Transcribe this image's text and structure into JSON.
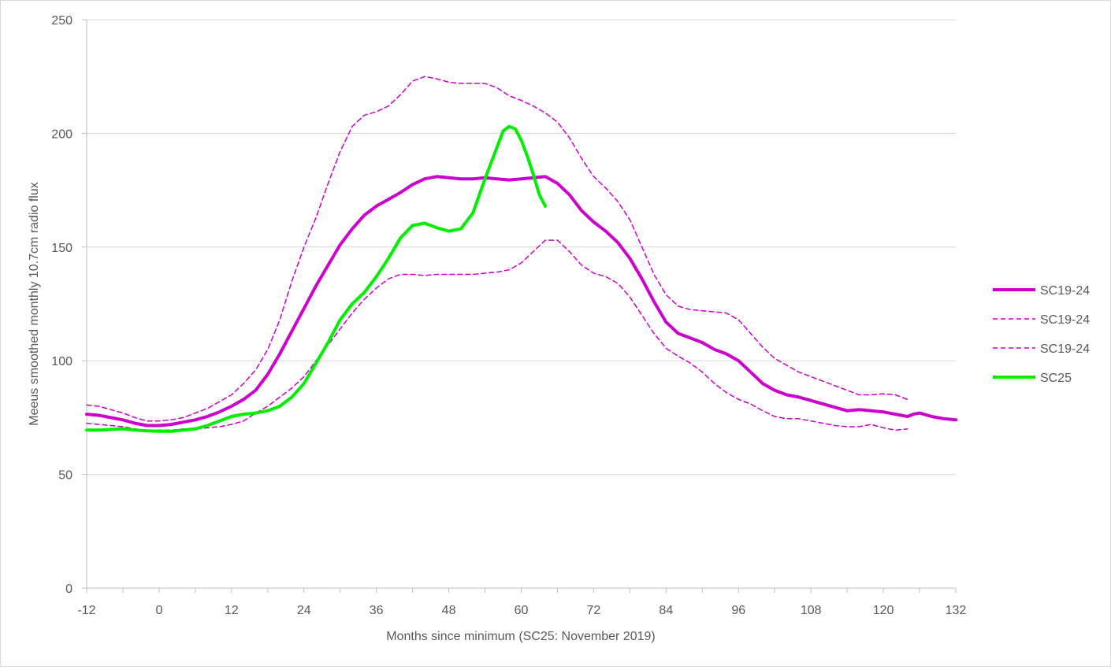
{
  "chart_data": {
    "type": "line",
    "title": "",
    "xlabel": "Months since minimum (SC25: November 2019)",
    "ylabel": "Meeus smoothed monthly 10.7cm radio flux",
    "xlim": [
      -12,
      132
    ],
    "ylim": [
      0,
      250
    ],
    "x_ticks": [
      -12,
      0,
      12,
      24,
      36,
      48,
      60,
      72,
      84,
      96,
      108,
      120,
      132
    ],
    "y_ticks": [
      0,
      50,
      100,
      150,
      200,
      250
    ],
    "grid": "horizontal",
    "legend_position": "right",
    "series": [
      {
        "name": "SC19-24",
        "color": "#cc00cc",
        "style": "solid-thick",
        "points": [
          [
            -12,
            76.5
          ],
          [
            -10,
            76
          ],
          [
            -8,
            75
          ],
          [
            -6,
            74
          ],
          [
            -4,
            72.5
          ],
          [
            -2,
            71.5
          ],
          [
            0,
            71.5
          ],
          [
            2,
            72
          ],
          [
            4,
            73
          ],
          [
            6,
            74
          ],
          [
            8,
            75.5
          ],
          [
            10,
            77.5
          ],
          [
            12,
            80
          ],
          [
            14,
            83
          ],
          [
            16,
            87
          ],
          [
            18,
            94
          ],
          [
            20,
            103
          ],
          [
            22,
            113
          ],
          [
            24,
            123
          ],
          [
            26,
            133
          ],
          [
            28,
            142
          ],
          [
            30,
            151
          ],
          [
            32,
            158
          ],
          [
            34,
            164
          ],
          [
            36,
            168
          ],
          [
            38,
            171
          ],
          [
            40,
            174
          ],
          [
            42,
            177.5
          ],
          [
            44,
            180
          ],
          [
            46,
            181
          ],
          [
            48,
            180.5
          ],
          [
            50,
            180
          ],
          [
            52,
            180
          ],
          [
            54,
            180.5
          ],
          [
            56,
            180
          ],
          [
            58,
            179.5
          ],
          [
            60,
            180
          ],
          [
            62,
            180.5
          ],
          [
            64,
            181
          ],
          [
            66,
            178
          ],
          [
            68,
            173
          ],
          [
            70,
            166
          ],
          [
            72,
            161
          ],
          [
            74,
            157
          ],
          [
            76,
            152
          ],
          [
            78,
            145
          ],
          [
            80,
            136
          ],
          [
            82,
            126
          ],
          [
            84,
            117
          ],
          [
            86,
            112
          ],
          [
            88,
            110
          ],
          [
            90,
            108
          ],
          [
            92,
            105
          ],
          [
            94,
            103
          ],
          [
            96,
            100
          ],
          [
            98,
            95
          ],
          [
            100,
            90
          ],
          [
            102,
            87
          ],
          [
            104,
            85
          ],
          [
            106,
            84
          ],
          [
            108,
            82.5
          ],
          [
            110,
            81
          ],
          [
            112,
            79.5
          ],
          [
            114,
            78
          ],
          [
            116,
            78.5
          ],
          [
            118,
            78
          ],
          [
            120,
            77.5
          ],
          [
            122,
            76.5
          ],
          [
            124,
            75.5
          ],
          [
            125,
            76.5
          ],
          [
            126,
            77
          ],
          [
            128,
            75.5
          ],
          [
            130,
            74.5
          ],
          [
            132,
            74
          ]
        ]
      },
      {
        "name": "SC19-24",
        "color": "#cc00cc",
        "style": "dashed",
        "points": [
          [
            -12,
            80.5
          ],
          [
            -10,
            80
          ],
          [
            -8,
            78.5
          ],
          [
            -6,
            77
          ],
          [
            -4,
            75
          ],
          [
            -2,
            73.5
          ],
          [
            0,
            73.5
          ],
          [
            2,
            74
          ],
          [
            4,
            75
          ],
          [
            6,
            77
          ],
          [
            8,
            79
          ],
          [
            10,
            82
          ],
          [
            12,
            85
          ],
          [
            14,
            90
          ],
          [
            16,
            96
          ],
          [
            18,
            105
          ],
          [
            20,
            118
          ],
          [
            22,
            135
          ],
          [
            24,
            150
          ],
          [
            26,
            163
          ],
          [
            28,
            178
          ],
          [
            30,
            192
          ],
          [
            32,
            203
          ],
          [
            34,
            208
          ],
          [
            36,
            209.5
          ],
          [
            38,
            212
          ],
          [
            40,
            217
          ],
          [
            42,
            223
          ],
          [
            44,
            225
          ],
          [
            46,
            224
          ],
          [
            48,
            222.5
          ],
          [
            50,
            222
          ],
          [
            52,
            222
          ],
          [
            54,
            222
          ],
          [
            56,
            220
          ],
          [
            58,
            216.5
          ],
          [
            60,
            214.5
          ],
          [
            62,
            212
          ],
          [
            64,
            209
          ],
          [
            66,
            205
          ],
          [
            68,
            198
          ],
          [
            70,
            189
          ],
          [
            72,
            181
          ],
          [
            74,
            176
          ],
          [
            76,
            170
          ],
          [
            78,
            162
          ],
          [
            80,
            150
          ],
          [
            82,
            138
          ],
          [
            84,
            129
          ],
          [
            86,
            124
          ],
          [
            88,
            122.5
          ],
          [
            90,
            122
          ],
          [
            92,
            121.5
          ],
          [
            94,
            121
          ],
          [
            96,
            118
          ],
          [
            98,
            112
          ],
          [
            100,
            106
          ],
          [
            102,
            101
          ],
          [
            104,
            98
          ],
          [
            106,
            95
          ],
          [
            108,
            93
          ],
          [
            110,
            91
          ],
          [
            112,
            89
          ],
          [
            114,
            87
          ],
          [
            116,
            85
          ],
          [
            118,
            85
          ],
          [
            120,
            85.5
          ],
          [
            122,
            85
          ],
          [
            124,
            83
          ]
        ]
      },
      {
        "name": "SC19-24",
        "color": "#cc00cc",
        "style": "dashed",
        "points": [
          [
            -12,
            72.5
          ],
          [
            -10,
            72
          ],
          [
            -8,
            71.5
          ],
          [
            -6,
            71
          ],
          [
            -4,
            70
          ],
          [
            -2,
            69.5
          ],
          [
            0,
            69.5
          ],
          [
            2,
            69.5
          ],
          [
            4,
            70
          ],
          [
            6,
            70
          ],
          [
            8,
            70.5
          ],
          [
            10,
            71
          ],
          [
            12,
            72
          ],
          [
            14,
            73.5
          ],
          [
            16,
            77
          ],
          [
            18,
            80
          ],
          [
            20,
            84
          ],
          [
            22,
            88
          ],
          [
            24,
            93
          ],
          [
            26,
            100
          ],
          [
            28,
            107
          ],
          [
            30,
            114
          ],
          [
            32,
            121
          ],
          [
            34,
            127
          ],
          [
            36,
            132
          ],
          [
            38,
            136
          ],
          [
            40,
            138
          ],
          [
            42,
            138
          ],
          [
            44,
            137.5
          ],
          [
            46,
            138
          ],
          [
            48,
            138
          ],
          [
            50,
            138
          ],
          [
            52,
            138
          ],
          [
            54,
            138.5
          ],
          [
            56,
            139
          ],
          [
            58,
            140
          ],
          [
            60,
            143
          ],
          [
            62,
            148
          ],
          [
            64,
            153
          ],
          [
            66,
            153
          ],
          [
            68,
            148
          ],
          [
            70,
            142
          ],
          [
            72,
            138.5
          ],
          [
            74,
            137
          ],
          [
            76,
            134
          ],
          [
            78,
            128
          ],
          [
            80,
            120
          ],
          [
            82,
            112
          ],
          [
            84,
            105.5
          ],
          [
            86,
            102
          ],
          [
            88,
            99
          ],
          [
            90,
            95
          ],
          [
            92,
            90
          ],
          [
            94,
            86
          ],
          [
            96,
            83
          ],
          [
            98,
            81
          ],
          [
            100,
            78
          ],
          [
            102,
            75.5
          ],
          [
            104,
            74.5
          ],
          [
            106,
            74.5
          ],
          [
            108,
            73.5
          ],
          [
            110,
            72.5
          ],
          [
            112,
            71.5
          ],
          [
            114,
            71
          ],
          [
            116,
            71
          ],
          [
            118,
            72
          ],
          [
            120,
            70.5
          ],
          [
            122,
            69.5
          ],
          [
            124,
            70
          ]
        ]
      },
      {
        "name": "SC25",
        "color": "#00ee00",
        "style": "solid-thick",
        "points": [
          [
            -12,
            69.5
          ],
          [
            -10,
            69.5
          ],
          [
            -8,
            69.8
          ],
          [
            -6,
            70
          ],
          [
            -4,
            69.5
          ],
          [
            -2,
            69.2
          ],
          [
            0,
            69
          ],
          [
            2,
            69
          ],
          [
            4,
            69.5
          ],
          [
            6,
            70
          ],
          [
            8,
            71.5
          ],
          [
            10,
            73.5
          ],
          [
            12,
            75.5
          ],
          [
            14,
            76.5
          ],
          [
            16,
            77
          ],
          [
            18,
            78
          ],
          [
            20,
            80
          ],
          [
            22,
            84
          ],
          [
            24,
            90
          ],
          [
            26,
            99
          ],
          [
            28,
            108
          ],
          [
            30,
            118
          ],
          [
            32,
            125
          ],
          [
            34,
            130
          ],
          [
            36,
            137
          ],
          [
            38,
            145
          ],
          [
            40,
            154
          ],
          [
            42,
            159.5
          ],
          [
            44,
            160.5
          ],
          [
            46,
            158.5
          ],
          [
            48,
            157
          ],
          [
            50,
            158
          ],
          [
            52,
            165
          ],
          [
            54,
            180
          ],
          [
            56,
            194
          ],
          [
            57,
            201
          ],
          [
            58,
            203
          ],
          [
            59,
            202
          ],
          [
            60,
            197
          ],
          [
            61,
            190
          ],
          [
            62,
            182
          ],
          [
            63,
            173
          ],
          [
            64,
            168
          ]
        ]
      }
    ]
  }
}
